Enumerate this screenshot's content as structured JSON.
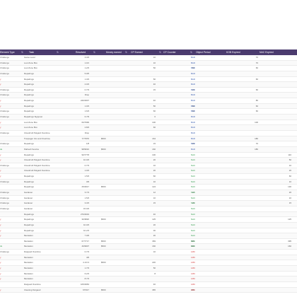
{
  "columns": {
    "type": "Element Type",
    "task": "Task",
    "resolved": "Resolved",
    "money": "Money earned",
    "cp_earned": "CP Earned",
    "cp_counter": "CP Counter",
    "object_period": "Object Period",
    "kob_expired": "KOB Expired",
    "nac_expired": "NAC Expired"
  },
  "rows": [
    {
      "type": "Challenge",
      "type_color": "gray",
      "task": "Game Level",
      "resolved": "3.3/3",
      "money": "",
      "cp1": "10",
      "cpc": "",
      "cpc2": "",
      "ob": "BAD",
      "ob_color": "blue",
      "ke": "70",
      "nac": ""
    },
    {
      "type": "Challenge",
      "type_color": "gray",
      "task": "Loot Zone Box",
      "resolved": "1.0/1",
      "money": "",
      "cp1": "10",
      "cpc": "",
      "cpc2": "",
      "ob": "BAD",
      "ob_color": "blue",
      "ke": "70",
      "nac": ""
    },
    {
      "type": "Challenge",
      "type_color": "gray",
      "task": "Loot Zone Box",
      "resolved": "1.2/3",
      "money": "",
      "cp1": "50",
      "cpc": "",
      "cpc2": "50",
      "ob": "BAD",
      "ob_color": "blue",
      "ke": "60",
      "nac": ""
    },
    {
      "type": "Challenge",
      "type_color": "gray",
      "task": "Repairings",
      "resolved": "5.0/5",
      "money": "",
      "cp1": "",
      "cpc": "",
      "cpc2": "",
      "ob": "BAD",
      "ob_color": "blue",
      "ke": "",
      "nac": ""
    },
    {
      "type": "y",
      "type_color": "red",
      "task": "Repairings",
      "resolved": "1.3/3",
      "money": "",
      "cp1": "50",
      "cpc": "",
      "cpc2": "",
      "ob": "BAD",
      "ob_color": "blue",
      "ke": "60",
      "nac": ""
    },
    {
      "type": "y",
      "type_color": "red",
      "task": "Repairings",
      "resolved": "2.0/3",
      "money": "",
      "cp1": "40",
      "cpc": "",
      "cpc2": "",
      "ob": "BAD",
      "ob_color": "blue",
      "ke": "",
      "nac": ""
    },
    {
      "type": "Challenge",
      "type_color": "gray",
      "task": "Repairings",
      "resolved": "0.7/3",
      "money": "",
      "cp1": "15",
      "cpc": "",
      "cpc2": "15",
      "ob": "BAD",
      "ob_color": "blue",
      "ke": "60",
      "nac": ""
    },
    {
      "type": "Challenge",
      "type_color": "gray",
      "task": "Repairings",
      "resolved": "Drop",
      "money": "",
      "cp1": "",
      "cpc": "",
      "cpc2": "",
      "ob": "BAD",
      "ob_color": "blue",
      "ke": "",
      "nac": ""
    },
    {
      "type": "y",
      "type_color": "red",
      "task": "Repairings",
      "resolved": "240/2907",
      "money": "",
      "cp1": "40",
      "cpc": "",
      "cpc2": "",
      "ob": "BAD",
      "ob_color": "blue",
      "ke": "80",
      "nac": ""
    },
    {
      "type": "y",
      "type_color": "red",
      "task": "Repairings",
      "resolved": "1.0/3",
      "money": "",
      "cp1": "50",
      "cpc": "",
      "cpc2": "50",
      "ob": "BAD",
      "ob_color": "blue",
      "ke": "60",
      "nac": ""
    },
    {
      "type": "Challenge",
      "type_color": "gray",
      "task": "Repairings",
      "resolved": "1.6/3",
      "money": "",
      "cp1": "60",
      "cpc": "",
      "cpc2": "60",
      "ob": "BAD",
      "ob_color": "blue",
      "ke": "60",
      "nac": ""
    },
    {
      "type": "Challenge",
      "type_color": "gray",
      "task": "Repairings Signpost",
      "resolved": "6.7/9",
      "money": "",
      "cp1": "0",
      "cpc": "",
      "cpc2": "",
      "ob": "BAD",
      "ob_color": "blue",
      "ke": "",
      "nac": ""
    },
    {
      "type": "y",
      "type_color": "red",
      "task": "Loot Zone Box",
      "resolved": "60/7999",
      "money": "",
      "cp1": "100",
      "cpc": "",
      "cpc2": "",
      "ob": "BAD",
      "ob_color": "blue",
      "ke": "100",
      "nac": ""
    },
    {
      "type": "y",
      "type_color": "red",
      "task": "Loot Zone Box",
      "resolved": "2.8/3",
      "money": "",
      "cp1": "60",
      "cpc": "",
      "cpc2": "",
      "ob": "BAD",
      "ob_color": "blue",
      "ke": "",
      "nac": ""
    },
    {
      "type": "Challenge",
      "type_color": "gray",
      "task": "Cloudcroft Pelgard Overtime",
      "resolved": "Drop",
      "money": "",
      "cp1": "",
      "cpc": "",
      "cpc2": "",
      "ob": "BAD",
      "ob_color": "blue",
      "ke": "",
      "nac": ""
    },
    {
      "type": "",
      "type_color": "gray",
      "task": "Trespager Vox and Overtime",
      "resolved": "77/7976",
      "money": "$500",
      "cp1": "164",
      "cpc": "",
      "cpc2": "",
      "ob": "BAD",
      "ob_color": "blue",
      "ke": "180",
      "nac": ""
    },
    {
      "type": "Challenge",
      "type_color": "gray",
      "task": "Repairings",
      "resolved": "1/8",
      "money": "",
      "cp1": "15",
      "cpc": "",
      "cpc2": "15",
      "ob": "BAD",
      "ob_color": "blue",
      "ke": "70",
      "nac": ""
    },
    {
      "type": "ds",
      "type_color": "green",
      "task": "Pathesh Service",
      "resolved": "98/9010",
      "money": "$500",
      "cp1": "160",
      "cpc": "",
      "cpc2": "",
      "ob": "BAD",
      "ob_color": "blue",
      "ke": "180",
      "nac": ""
    },
    {
      "type": "y",
      "type_color": "red",
      "task": "Repairings",
      "resolved": "90/7778",
      "money": "",
      "cp1": "100",
      "cpc": "",
      "cpc2": "",
      "ob": "NAC",
      "ob_color": "green",
      "ke": "",
      "nac": "110"
    },
    {
      "type": "y",
      "type_color": "red",
      "task": "Cloudcroft Pelgard Overtime",
      "resolved": "10.0/3",
      "money": "",
      "cp1": "20",
      "cpc": "",
      "cpc2": "",
      "ob": "NAC",
      "ob_color": "green",
      "ke": "",
      "nac": "50"
    },
    {
      "type": "Challenge",
      "type_color": "gray",
      "task": "Cloudcroft Pelgard Overtime",
      "resolved": "0.7/3",
      "money": "",
      "cp1": "10",
      "cpc": "",
      "cpc2": "",
      "ob": "NAC",
      "ob_color": "green",
      "ke": "",
      "nac": "10"
    },
    {
      "type": "y",
      "type_color": "red",
      "task": "Cloudcroft Pelgard Overtime",
      "resolved": "1.0/3",
      "money": "",
      "cp1": "20",
      "cpc": "",
      "cpc2": "",
      "ob": "NAC",
      "ob_color": "green",
      "ke": "",
      "nac": "20"
    },
    {
      "type": "y",
      "type_color": "red",
      "task": "Repairings",
      "resolved": "1.5/3",
      "money": "",
      "cp1": "60",
      "cpc": "",
      "cpc2": "",
      "ob": "NAC",
      "ob_color": "green",
      "ke": "",
      "nac": "60"
    },
    {
      "type": "Challenge",
      "type_color": "gray",
      "task": "Repairings",
      "resolved": "3/9",
      "money": "",
      "cp1": "10",
      "cpc": "",
      "cpc2": "",
      "ob": "NAC",
      "ob_color": "green",
      "ke": "",
      "nac": "10"
    },
    {
      "type": "",
      "type_color": "gray",
      "task": "Repairings",
      "resolved": "25/2917",
      "money": "$500",
      "cp1": "124",
      "cpc": "",
      "cpc2": "",
      "ob": "NAC",
      "ob_color": "green",
      "ke": "",
      "nac": "130"
    },
    {
      "type": "Challenge",
      "type_color": "gray",
      "task": "Gardener",
      "resolved": "3.7/4",
      "money": "",
      "cp1": "12",
      "cpc": "",
      "cpc2": "12",
      "ob": "NAC",
      "ob_color": "green",
      "ke": "",
      "nac": "20"
    },
    {
      "type": "Challenge",
      "type_color": "gray",
      "task": "Gardener",
      "resolved": "1.5/3",
      "money": "",
      "cp1": "10",
      "cpc": "",
      "cpc2": "",
      "ob": "NAC",
      "ob_color": "green",
      "ke": "",
      "nac": "10"
    },
    {
      "type": "Challenge",
      "type_color": "gray",
      "task": "Gardener",
      "resolved": "3.3/3",
      "money": "",
      "cp1": "15",
      "cpc": "",
      "cpc2": "15",
      "ob": "NAC",
      "ob_color": "green",
      "ke": "",
      "nac": "15"
    },
    {
      "type": "Challenge",
      "type_color": "gray",
      "task": "Gardener",
      "resolved": "15.0/3",
      "money": "",
      "cp1": "",
      "cpc": "",
      "cpc2": "",
      "ob": "NAC",
      "ob_color": "green",
      "ke": "",
      "nac": ""
    },
    {
      "type": "",
      "type_color": "gray",
      "task": "Repairings",
      "resolved": "270/2919",
      "money": "",
      "cp1": "40",
      "cpc": "",
      "cpc2": "",
      "ob": "NAC",
      "ob_color": "green",
      "ke": "",
      "nac": ""
    },
    {
      "type": "y",
      "type_color": "red",
      "task": "Repairings",
      "resolved": "30/3820",
      "money": "$500",
      "cp1": "125",
      "cpc": "",
      "cpc2": "",
      "ob": "NAC",
      "ob_color": "green",
      "ke": "",
      "nac": "125"
    },
    {
      "type": "y",
      "type_color": "red",
      "task": "Repairings",
      "resolved": "10.0/3",
      "money": "",
      "cp1": "20",
      "cpc": "",
      "cpc2": "",
      "ob": "NAC",
      "ob_color": "green",
      "ke": "",
      "nac": ""
    },
    {
      "type": "y",
      "type_color": "red",
      "task": "Repairings",
      "resolved": "10.2/3",
      "money": "",
      "cp1": "30",
      "cpc": "",
      "cpc2": "",
      "ob": "NAC",
      "ob_color": "green",
      "ke": "",
      "nac": ""
    },
    {
      "type": "y",
      "type_color": "red",
      "task": "Mentation",
      "resolved": "7.0/9",
      "money": "",
      "cp1": "20",
      "cpc": "",
      "cpc2": "",
      "ob": "NAC",
      "ob_color": "green",
      "ke": "",
      "nac": ""
    },
    {
      "type": "",
      "type_color": "gray",
      "task": "Mentation",
      "resolved": "67/7717",
      "money": "$500",
      "cp1": "369",
      "cpc": "",
      "cpc2": "395",
      "ob": "NAC",
      "ob_color": "green",
      "ke": "",
      "nac": "395"
    },
    {
      "type": "ds",
      "type_color": "green",
      "task": "Mentation",
      "resolved": "46/9907",
      "money": "$500",
      "cp1": "160",
      "cpc": "",
      "cpc2": "160",
      "ob": "NAC",
      "ob_color": "green",
      "ke": "",
      "nac": "160"
    },
    {
      "type": "Challenge",
      "type_color": "gray",
      "task": "Dargaud Overtime",
      "resolved": "0.7/3",
      "money": "",
      "cp1": "10",
      "cpc": "",
      "cpc2": "",
      "ob": "LMC",
      "ob_color": "red",
      "ke": "",
      "nac": ""
    },
    {
      "type": "y",
      "type_color": "red",
      "task": "Mentation",
      "resolved": "4/9",
      "money": "",
      "cp1": "",
      "cpc": "",
      "cpc2": "",
      "ob": "LMC",
      "ob_color": "red",
      "ke": "",
      "nac": ""
    },
    {
      "type": "y",
      "type_color": "red",
      "task": "Mentation",
      "resolved": "4.1/3.3",
      "money": "$500",
      "cp1": "220",
      "cpc": "",
      "cpc2": "",
      "ob": "LMC",
      "ob_color": "red",
      "ke": "",
      "nac": ""
    },
    {
      "type": "y",
      "type_color": "red",
      "task": "Mentation",
      "resolved": "1.7/3",
      "money": "",
      "cp1": "50",
      "cpc": "",
      "cpc2": "",
      "ob": "LMC",
      "ob_color": "red",
      "ke": "",
      "nac": ""
    },
    {
      "type": "y",
      "type_color": "red",
      "task": "Mentation",
      "resolved": "6.2/3",
      "money": "",
      "cp1": "8",
      "cpc": "",
      "cpc2": "",
      "ob": "LMC",
      "ob_color": "red",
      "ke": "",
      "nac": ""
    },
    {
      "type": "y",
      "type_color": "red",
      "task": "Mentation",
      "resolved": "8.7/3",
      "money": "",
      "cp1": "",
      "cpc": "",
      "cpc2": "",
      "ob": "LMC",
      "ob_color": "red",
      "ke": "",
      "nac": ""
    },
    {
      "type": "",
      "type_color": "gray",
      "task": "Dargaud Overtime",
      "resolved": "105/2963",
      "money": "",
      "cp1": "40",
      "cpc": "",
      "cpc2": "",
      "ob": "LMC",
      "ob_color": "red",
      "ke": "",
      "nac": ""
    },
    {
      "type": "y",
      "type_color": "red",
      "task": "Cleaning Dargaud",
      "resolved": "67/917",
      "money": "$500",
      "cp1": "365",
      "cpc": "",
      "cpc2": "365",
      "ob": "LMC",
      "ob_color": "red",
      "ke": "",
      "nac": ""
    }
  ]
}
